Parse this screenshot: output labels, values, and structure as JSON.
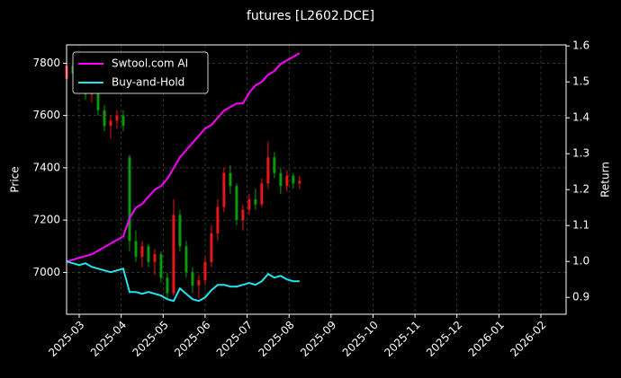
{
  "chart_data": {
    "type": "candlestick",
    "title": "futures [L2602.DCE]",
    "y_label": "Price",
    "y2_label": "Return",
    "x": [
      -0.3,
      -0.15,
      0,
      0.15,
      0.3,
      0.45,
      0.6,
      0.75,
      0.9,
      1.05,
      1.2,
      1.35,
      1.5,
      1.65,
      1.8,
      1.95,
      2.1,
      2.25,
      2.4,
      2.55,
      2.7,
      2.85,
      3,
      3.15,
      3.3,
      3.45,
      3.6,
      3.75,
      3.9,
      4.05,
      4.2,
      4.35,
      4.5,
      4.65,
      4.8,
      4.95,
      5.1,
      5.25
    ],
    "open": [
      7740,
      7790,
      7760,
      7720,
      7680,
      7700,
      7620,
      7560,
      7580,
      7600,
      7440,
      7120,
      7060,
      7100,
      7040,
      7070,
      6980,
      6920,
      7220,
      7100,
      7000,
      6950,
      6970,
      7040,
      7150,
      7250,
      7380,
      7330,
      7200,
      7240,
      7280,
      7260,
      7340,
      7440,
      7380,
      7330,
      7370,
      7340
    ],
    "high": [
      7800,
      7810,
      7770,
      7740,
      7720,
      7710,
      7640,
      7600,
      7620,
      7620,
      7450,
      7160,
      7120,
      7110,
      7090,
      7080,
      7000,
      7280,
      7240,
      7120,
      7020,
      6990,
      7060,
      7180,
      7280,
      7400,
      7410,
      7340,
      7260,
      7300,
      7320,
      7360,
      7500,
      7460,
      7400,
      7390,
      7380,
      7370
    ],
    "low": [
      7730,
      7740,
      7700,
      7660,
      7650,
      7600,
      7540,
      7510,
      7550,
      7540,
      7080,
      7040,
      7020,
      7020,
      6990,
      6960,
      6900,
      6910,
      7080,
      6980,
      6920,
      6900,
      6950,
      7020,
      7120,
      7230,
      7300,
      7180,
      7160,
      7220,
      7240,
      7250,
      7320,
      7360,
      7300,
      7310,
      7320,
      7320
    ],
    "close": [
      7790,
      7760,
      7720,
      7680,
      7700,
      7620,
      7560,
      7580,
      7600,
      7560,
      7120,
      7060,
      7100,
      7040,
      7070,
      6980,
      6920,
      7220,
      7100,
      7000,
      6950,
      6970,
      7040,
      7150,
      7250,
      7380,
      7330,
      7200,
      7240,
      7280,
      7260,
      7340,
      7440,
      7380,
      7330,
      7370,
      7340,
      7350
    ],
    "up_color": "#e8161b",
    "down_color": "#0c9a0c",
    "series": [
      {
        "name": "Swtool.com AI",
        "color": "#ff00ff",
        "axis": "y2",
        "values": [
          1.0,
          1.005,
          1.01,
          1.015,
          1.02,
          1.03,
          1.04,
          1.05,
          1.06,
          1.07,
          1.12,
          1.15,
          1.16,
          1.18,
          1.2,
          1.21,
          1.23,
          1.26,
          1.29,
          1.31,
          1.33,
          1.35,
          1.37,
          1.38,
          1.4,
          1.42,
          1.43,
          1.44,
          1.44,
          1.47,
          1.49,
          1.5,
          1.52,
          1.53,
          1.55,
          1.56,
          1.57,
          1.58
        ]
      },
      {
        "name": "Buy-and-Hold",
        "color": "#22e5ee",
        "axis": "y2",
        "values": [
          1.0,
          0.995,
          0.99,
          0.995,
          0.985,
          0.98,
          0.975,
          0.97,
          0.975,
          0.98,
          0.915,
          0.915,
          0.91,
          0.915,
          0.91,
          0.905,
          0.895,
          0.89,
          0.925,
          0.91,
          0.895,
          0.89,
          0.9,
          0.92,
          0.935,
          0.935,
          0.93,
          0.93,
          0.935,
          0.94,
          0.935,
          0.945,
          0.965,
          0.955,
          0.96,
          0.95,
          0.945,
          0.945
        ]
      }
    ],
    "xlim": [
      -0.3,
      11.6
    ],
    "xticks": [
      {
        "value": 0,
        "label": "2025-03"
      },
      {
        "value": 1,
        "label": "2025-04"
      },
      {
        "value": 2,
        "label": "2025-05"
      },
      {
        "value": 3,
        "label": "2025-06"
      },
      {
        "value": 4,
        "label": "2025-07"
      },
      {
        "value": 5,
        "label": "2025-08"
      },
      {
        "value": 6,
        "label": "2025-09"
      },
      {
        "value": 7,
        "label": "2025-10"
      },
      {
        "value": 8,
        "label": "2025-11"
      },
      {
        "value": 9,
        "label": "2025-12"
      },
      {
        "value": 10,
        "label": "2026-01"
      },
      {
        "value": 11,
        "label": "2026-02"
      }
    ],
    "ylim": [
      6840,
      7870
    ],
    "yticks": [
      7000,
      7200,
      7400,
      7600,
      7800
    ],
    "y2lim": [
      0.853,
      1.603
    ],
    "y2ticks": [
      0.9,
      {
        "value": 1,
        "label": "1.0"
      },
      1.1,
      1.2,
      1.3,
      1.4,
      1.5,
      1.6
    ],
    "grid": true,
    "legend": "upper left"
  }
}
